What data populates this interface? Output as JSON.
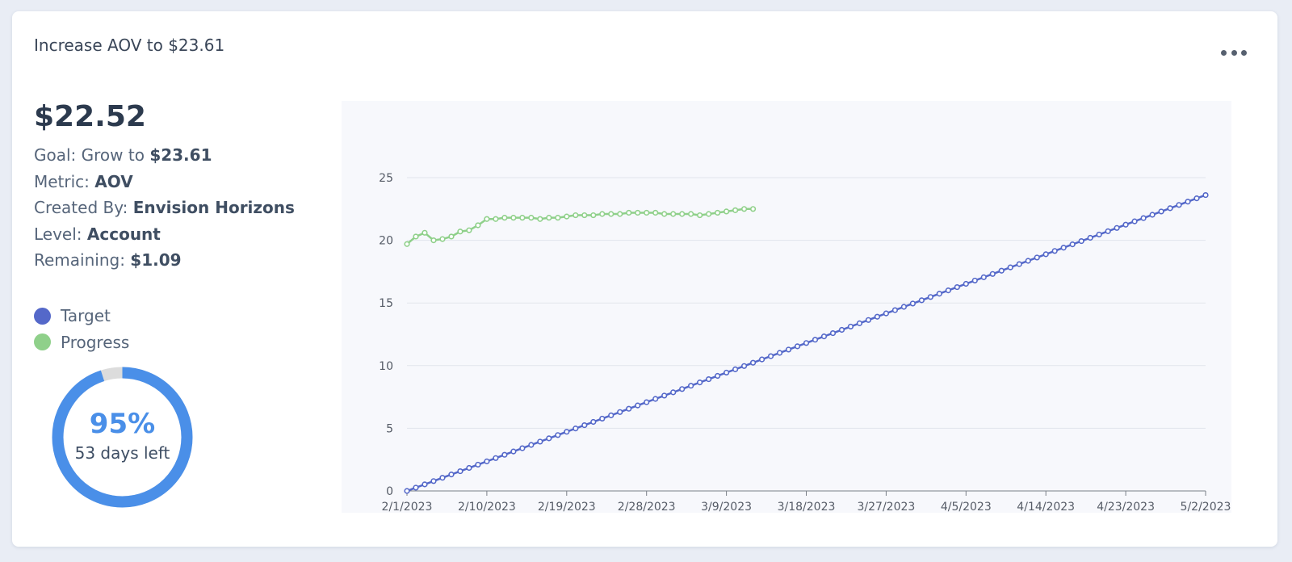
{
  "card": {
    "title": "Increase AOV to $23.61",
    "more_icon": "ellipsis-horizontal-icon"
  },
  "summary": {
    "value": "$22.52",
    "goal_label": "Goal: Grow to ",
    "goal_value": "$23.61",
    "metric_label": "Metric: ",
    "metric_value": "AOV",
    "created_label": "Created By: ",
    "created_value": "Envision Horizons",
    "level_label": "Level: ",
    "level_value": "Account",
    "remaining_label": "Remaining: ",
    "remaining_value": "$1.09"
  },
  "legend": {
    "target_label": "Target",
    "progress_label": "Progress"
  },
  "colors": {
    "target": "#5468c9",
    "progress": "#8fd08a",
    "donut_fill": "#4a8fe8",
    "donut_track": "#dcdcdc"
  },
  "progress_ring": {
    "percent": 95,
    "percent_text": "95%",
    "days_left_text": "53 days left"
  },
  "chart_data": {
    "type": "line",
    "x_axis": {
      "type": "date",
      "start": "2/1/2023",
      "end": "5/2/2023"
    },
    "x_tick_labels": [
      "2/1/2023",
      "2/10/2023",
      "2/19/2023",
      "2/28/2023",
      "3/9/2023",
      "3/18/2023",
      "3/27/2023",
      "4/5/2023",
      "4/14/2023",
      "4/23/2023",
      "5/2/2023"
    ],
    "y_ticks": [
      0,
      5,
      10,
      15,
      20,
      25
    ],
    "ylim": [
      0,
      25
    ],
    "grid": true,
    "series": [
      {
        "name": "Target",
        "color": "#5468c9",
        "start": {
          "date": "2/1/2023",
          "value": 0
        },
        "end": {
          "date": "5/2/2023",
          "value": 23.61
        },
        "points_per_day": 1,
        "interpolation": "linear"
      },
      {
        "name": "Progress",
        "color": "#8fd08a",
        "start_date": "2/1/2023",
        "values": [
          19.7,
          20.3,
          20.6,
          20.0,
          20.1,
          20.3,
          20.7,
          20.8,
          21.2,
          21.7,
          21.7,
          21.8,
          21.8,
          21.8,
          21.8,
          21.7,
          21.8,
          21.8,
          21.9,
          22.0,
          22.0,
          22.0,
          22.1,
          22.1,
          22.1,
          22.2,
          22.2,
          22.2,
          22.2,
          22.1,
          22.1,
          22.1,
          22.1,
          22.0,
          22.1,
          22.2,
          22.3,
          22.4,
          22.5,
          22.5
        ]
      }
    ]
  }
}
